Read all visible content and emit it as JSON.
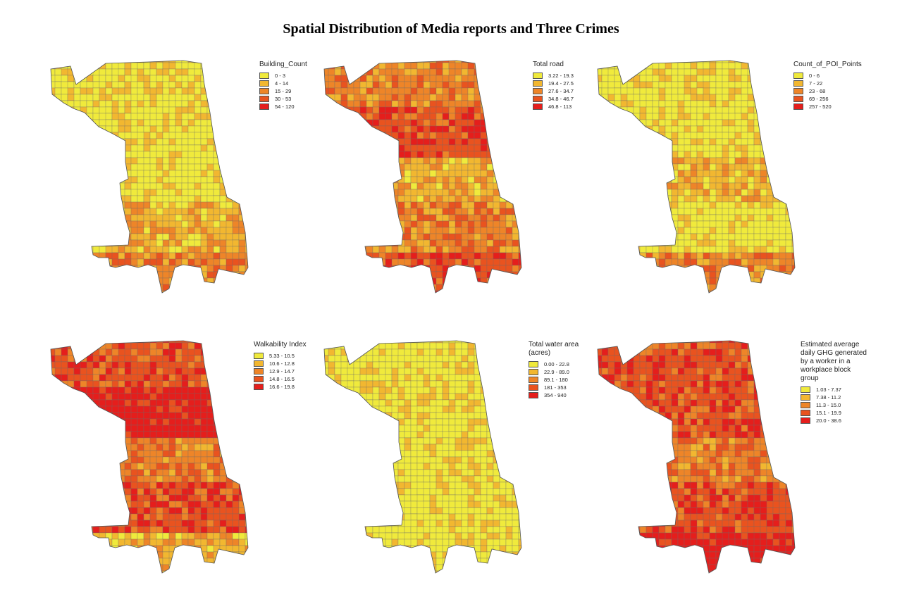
{
  "title": "Spatial Distribution of Media reports and Three Crimes",
  "colors": {
    "c1": "#f0ea3c",
    "c2": "#f2b730",
    "c3": "#ee8528",
    "c4": "#e9531f",
    "c5": "#e51e1c",
    "boundary": "#6b6b6b"
  },
  "panels": [
    {
      "id": "building",
      "legend_title": [
        "Building_Count"
      ],
      "classes": [
        "0 - 3",
        "4 - 14",
        "15 - 29",
        "30 - 53",
        "54 - 120"
      ],
      "dominant_colors": [
        "c1",
        "c1",
        "c1",
        "c2",
        "c3"
      ]
    },
    {
      "id": "road",
      "legend_title": [
        "Total road"
      ],
      "classes": [
        "3.22 - 19.3",
        "19.4 - 27.5",
        "27.6 - 34.7",
        "34.8 - 46.7",
        "46.8 - 113"
      ],
      "dominant_colors": [
        "c3",
        "c4",
        "c2",
        "c3",
        "c4"
      ]
    },
    {
      "id": "poi",
      "legend_title": [
        "Count_of_POI_Points"
      ],
      "classes": [
        "0 - 6",
        "7 - 22",
        "23 - 68",
        "69 - 256",
        "257 - 520"
      ],
      "dominant_colors": [
        "c1",
        "c1",
        "c2",
        "c1",
        "c3"
      ]
    },
    {
      "id": "walk",
      "legend_title": [
        "Walkability Index"
      ],
      "classes": [
        "5.33 - 10.5",
        "10.6 - 12.8",
        "12.9 - 14.7",
        "14.8 - 16.5",
        "16.6 - 19.8"
      ],
      "dominant_colors": [
        "c4",
        "c5",
        "c3",
        "c4",
        "c2"
      ]
    },
    {
      "id": "water",
      "legend_title": [
        "Total water area",
        "(acres)"
      ],
      "classes": [
        "0.00 - 22.8",
        "22.9 - 89.0",
        "89.1 - 180",
        "181 - 353",
        "354 - 940"
      ],
      "dominant_colors": [
        "c1",
        "c1",
        "c1",
        "c1",
        "c1"
      ]
    },
    {
      "id": "ghg",
      "legend_title": [
        "Estimated average",
        "daily GHG generated",
        "by a worker in a",
        "workplace block",
        "group"
      ],
      "classes": [
        "1.03 - 7.37",
        "7.38 - 11.2",
        "11.3 - 15.0",
        "15.1 - 19.9",
        "20.0 - 38.6"
      ],
      "dominant_colors": [
        "c4",
        "c4",
        "c3",
        "c4",
        "c5"
      ]
    }
  ]
}
